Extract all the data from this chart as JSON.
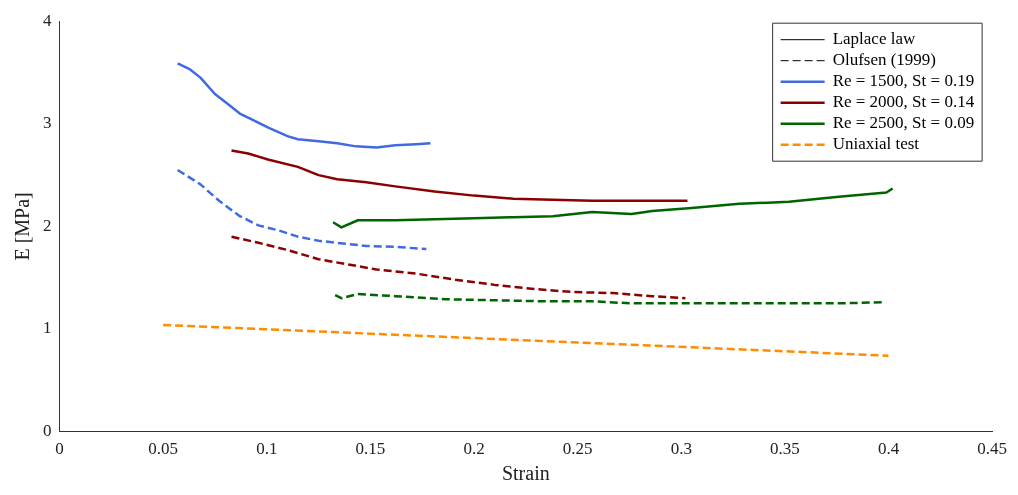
{
  "chart_data": {
    "type": "line",
    "xlabel": "Strain",
    "ylabel": "E [MPa]",
    "xlim": [
      0,
      0.45
    ],
    "xticks": [
      0,
      0.05,
      0.1,
      0.15,
      0.2,
      0.25,
      0.3,
      0.35,
      0.4,
      0.45
    ],
    "ylim": [
      0,
      4
    ],
    "yticks": [
      0,
      1,
      2,
      3,
      4
    ],
    "grid": false,
    "legend": "top right",
    "marker": "none",
    "series": [
      {
        "name": "Laplace law",
        "color": "#000000",
        "line_style": "solid"
      },
      {
        "name": "Olufsen (1999)",
        "color": "#000000",
        "line_style": "dashed"
      },
      {
        "name": "Re = 1500, St = 0.19",
        "color": "#4169e1",
        "line_style": "solid",
        "x": [
          0.057,
          0.063,
          0.068,
          0.075,
          0.082,
          0.087,
          0.094,
          0.101,
          0.11,
          0.115,
          0.125,
          0.134,
          0.143,
          0.153,
          0.162,
          0.172,
          0.179
        ],
        "values": [
          3.59,
          3.53,
          3.45,
          3.29,
          3.18,
          3.1,
          3.03,
          2.96,
          2.88,
          2.85,
          2.83,
          2.81,
          2.78,
          2.77,
          2.79,
          2.8,
          2.81
        ]
      },
      {
        "name": "Re = 2000, St = 0.14",
        "color": "#8b0000",
        "line_style": "solid",
        "x": [
          0.083,
          0.091,
          0.101,
          0.115,
          0.125,
          0.134,
          0.148,
          0.162,
          0.181,
          0.2,
          0.219,
          0.238,
          0.257,
          0.281,
          0.303
        ],
        "values": [
          2.74,
          2.71,
          2.65,
          2.58,
          2.5,
          2.46,
          2.43,
          2.39,
          2.34,
          2.3,
          2.27,
          2.26,
          2.25,
          2.25,
          2.25
        ]
      },
      {
        "name": "Re = 2500, St = 0.09",
        "color": "#006400",
        "line_style": "solid",
        "x": [
          0.132,
          0.136,
          0.144,
          0.162,
          0.181,
          0.2,
          0.219,
          0.238,
          0.257,
          0.276,
          0.286,
          0.305,
          0.328,
          0.352,
          0.376,
          0.399,
          0.402
        ],
        "values": [
          2.04,
          1.99,
          2.06,
          2.06,
          2.07,
          2.08,
          2.09,
          2.1,
          2.14,
          2.12,
          2.15,
          2.18,
          2.22,
          2.24,
          2.29,
          2.33,
          2.37
        ]
      },
      {
        "name": "Uniaxial test",
        "color": "#ff8c00",
        "line_style": "dashed",
        "x": [
          0.05,
          0.4
        ],
        "values": [
          1.04,
          0.74
        ]
      },
      {
        "color": "#4169e1",
        "line_style": "dashed",
        "x": [
          0.057,
          0.068,
          0.077,
          0.087,
          0.096,
          0.106,
          0.115,
          0.125,
          0.134,
          0.148,
          0.162,
          0.177
        ],
        "values": [
          2.55,
          2.41,
          2.25,
          2.1,
          2.01,
          1.96,
          1.9,
          1.86,
          1.84,
          1.81,
          1.8,
          1.78
        ]
      },
      {
        "color": "#8b0000",
        "line_style": "dashed",
        "x": [
          0.083,
          0.096,
          0.11,
          0.125,
          0.139,
          0.153,
          0.172,
          0.191,
          0.21,
          0.229,
          0.248,
          0.267,
          0.286,
          0.302
        ],
        "values": [
          1.9,
          1.84,
          1.77,
          1.68,
          1.63,
          1.58,
          1.54,
          1.48,
          1.43,
          1.39,
          1.36,
          1.35,
          1.32,
          1.3
        ]
      },
      {
        "color": "#006400",
        "line_style": "dashed",
        "x": [
          0.133,
          0.136,
          0.144,
          0.162,
          0.186,
          0.21,
          0.234,
          0.257,
          0.276,
          0.305,
          0.328,
          0.352,
          0.376,
          0.397
        ],
        "values": [
          1.33,
          1.3,
          1.34,
          1.32,
          1.29,
          1.28,
          1.27,
          1.27,
          1.25,
          1.25,
          1.25,
          1.25,
          1.25,
          1.26
        ]
      }
    ]
  }
}
